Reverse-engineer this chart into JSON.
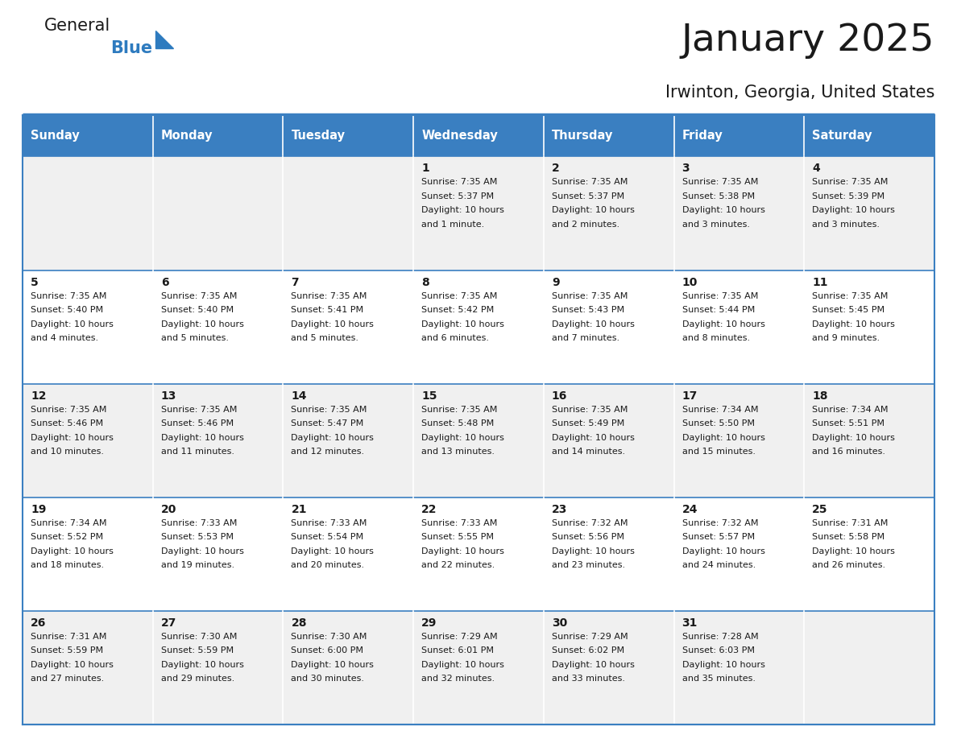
{
  "title": "January 2025",
  "subtitle": "Irwinton, Georgia, United States",
  "header_bg": "#3a7fc1",
  "header_text": "#ffffff",
  "row_bg_odd": "#f0f0f0",
  "row_bg_even": "#ffffff",
  "title_color": "#1a1a1a",
  "subtitle_color": "#1a1a1a",
  "day_num_color": "#1a1a1a",
  "cell_text_color": "#1a1a1a",
  "logo_general_color": "#1a1a1a",
  "logo_blue_color": "#2e7bbf",
  "border_color": "#3a7fc1",
  "divider_color": "#3a7fc1",
  "day_names": [
    "Sunday",
    "Monday",
    "Tuesday",
    "Wednesday",
    "Thursday",
    "Friday",
    "Saturday"
  ],
  "weeks": [
    [
      {
        "day": "",
        "lines": []
      },
      {
        "day": "",
        "lines": []
      },
      {
        "day": "",
        "lines": []
      },
      {
        "day": "1",
        "lines": [
          "Sunrise: 7:35 AM",
          "Sunset: 5:37 PM",
          "Daylight: 10 hours",
          "and 1 minute."
        ]
      },
      {
        "day": "2",
        "lines": [
          "Sunrise: 7:35 AM",
          "Sunset: 5:37 PM",
          "Daylight: 10 hours",
          "and 2 minutes."
        ]
      },
      {
        "day": "3",
        "lines": [
          "Sunrise: 7:35 AM",
          "Sunset: 5:38 PM",
          "Daylight: 10 hours",
          "and 3 minutes."
        ]
      },
      {
        "day": "4",
        "lines": [
          "Sunrise: 7:35 AM",
          "Sunset: 5:39 PM",
          "Daylight: 10 hours",
          "and 3 minutes."
        ]
      }
    ],
    [
      {
        "day": "5",
        "lines": [
          "Sunrise: 7:35 AM",
          "Sunset: 5:40 PM",
          "Daylight: 10 hours",
          "and 4 minutes."
        ]
      },
      {
        "day": "6",
        "lines": [
          "Sunrise: 7:35 AM",
          "Sunset: 5:40 PM",
          "Daylight: 10 hours",
          "and 5 minutes."
        ]
      },
      {
        "day": "7",
        "lines": [
          "Sunrise: 7:35 AM",
          "Sunset: 5:41 PM",
          "Daylight: 10 hours",
          "and 5 minutes."
        ]
      },
      {
        "day": "8",
        "lines": [
          "Sunrise: 7:35 AM",
          "Sunset: 5:42 PM",
          "Daylight: 10 hours",
          "and 6 minutes."
        ]
      },
      {
        "day": "9",
        "lines": [
          "Sunrise: 7:35 AM",
          "Sunset: 5:43 PM",
          "Daylight: 10 hours",
          "and 7 minutes."
        ]
      },
      {
        "day": "10",
        "lines": [
          "Sunrise: 7:35 AM",
          "Sunset: 5:44 PM",
          "Daylight: 10 hours",
          "and 8 minutes."
        ]
      },
      {
        "day": "11",
        "lines": [
          "Sunrise: 7:35 AM",
          "Sunset: 5:45 PM",
          "Daylight: 10 hours",
          "and 9 minutes."
        ]
      }
    ],
    [
      {
        "day": "12",
        "lines": [
          "Sunrise: 7:35 AM",
          "Sunset: 5:46 PM",
          "Daylight: 10 hours",
          "and 10 minutes."
        ]
      },
      {
        "day": "13",
        "lines": [
          "Sunrise: 7:35 AM",
          "Sunset: 5:46 PM",
          "Daylight: 10 hours",
          "and 11 minutes."
        ]
      },
      {
        "day": "14",
        "lines": [
          "Sunrise: 7:35 AM",
          "Sunset: 5:47 PM",
          "Daylight: 10 hours",
          "and 12 minutes."
        ]
      },
      {
        "day": "15",
        "lines": [
          "Sunrise: 7:35 AM",
          "Sunset: 5:48 PM",
          "Daylight: 10 hours",
          "and 13 minutes."
        ]
      },
      {
        "day": "16",
        "lines": [
          "Sunrise: 7:35 AM",
          "Sunset: 5:49 PM",
          "Daylight: 10 hours",
          "and 14 minutes."
        ]
      },
      {
        "day": "17",
        "lines": [
          "Sunrise: 7:34 AM",
          "Sunset: 5:50 PM",
          "Daylight: 10 hours",
          "and 15 minutes."
        ]
      },
      {
        "day": "18",
        "lines": [
          "Sunrise: 7:34 AM",
          "Sunset: 5:51 PM",
          "Daylight: 10 hours",
          "and 16 minutes."
        ]
      }
    ],
    [
      {
        "day": "19",
        "lines": [
          "Sunrise: 7:34 AM",
          "Sunset: 5:52 PM",
          "Daylight: 10 hours",
          "and 18 minutes."
        ]
      },
      {
        "day": "20",
        "lines": [
          "Sunrise: 7:33 AM",
          "Sunset: 5:53 PM",
          "Daylight: 10 hours",
          "and 19 minutes."
        ]
      },
      {
        "day": "21",
        "lines": [
          "Sunrise: 7:33 AM",
          "Sunset: 5:54 PM",
          "Daylight: 10 hours",
          "and 20 minutes."
        ]
      },
      {
        "day": "22",
        "lines": [
          "Sunrise: 7:33 AM",
          "Sunset: 5:55 PM",
          "Daylight: 10 hours",
          "and 22 minutes."
        ]
      },
      {
        "day": "23",
        "lines": [
          "Sunrise: 7:32 AM",
          "Sunset: 5:56 PM",
          "Daylight: 10 hours",
          "and 23 minutes."
        ]
      },
      {
        "day": "24",
        "lines": [
          "Sunrise: 7:32 AM",
          "Sunset: 5:57 PM",
          "Daylight: 10 hours",
          "and 24 minutes."
        ]
      },
      {
        "day": "25",
        "lines": [
          "Sunrise: 7:31 AM",
          "Sunset: 5:58 PM",
          "Daylight: 10 hours",
          "and 26 minutes."
        ]
      }
    ],
    [
      {
        "day": "26",
        "lines": [
          "Sunrise: 7:31 AM",
          "Sunset: 5:59 PM",
          "Daylight: 10 hours",
          "and 27 minutes."
        ]
      },
      {
        "day": "27",
        "lines": [
          "Sunrise: 7:30 AM",
          "Sunset: 5:59 PM",
          "Daylight: 10 hours",
          "and 29 minutes."
        ]
      },
      {
        "day": "28",
        "lines": [
          "Sunrise: 7:30 AM",
          "Sunset: 6:00 PM",
          "Daylight: 10 hours",
          "and 30 minutes."
        ]
      },
      {
        "day": "29",
        "lines": [
          "Sunrise: 7:29 AM",
          "Sunset: 6:01 PM",
          "Daylight: 10 hours",
          "and 32 minutes."
        ]
      },
      {
        "day": "30",
        "lines": [
          "Sunrise: 7:29 AM",
          "Sunset: 6:02 PM",
          "Daylight: 10 hours",
          "and 33 minutes."
        ]
      },
      {
        "day": "31",
        "lines": [
          "Sunrise: 7:28 AM",
          "Sunset: 6:03 PM",
          "Daylight: 10 hours",
          "and 35 minutes."
        ]
      },
      {
        "day": "",
        "lines": []
      }
    ]
  ]
}
